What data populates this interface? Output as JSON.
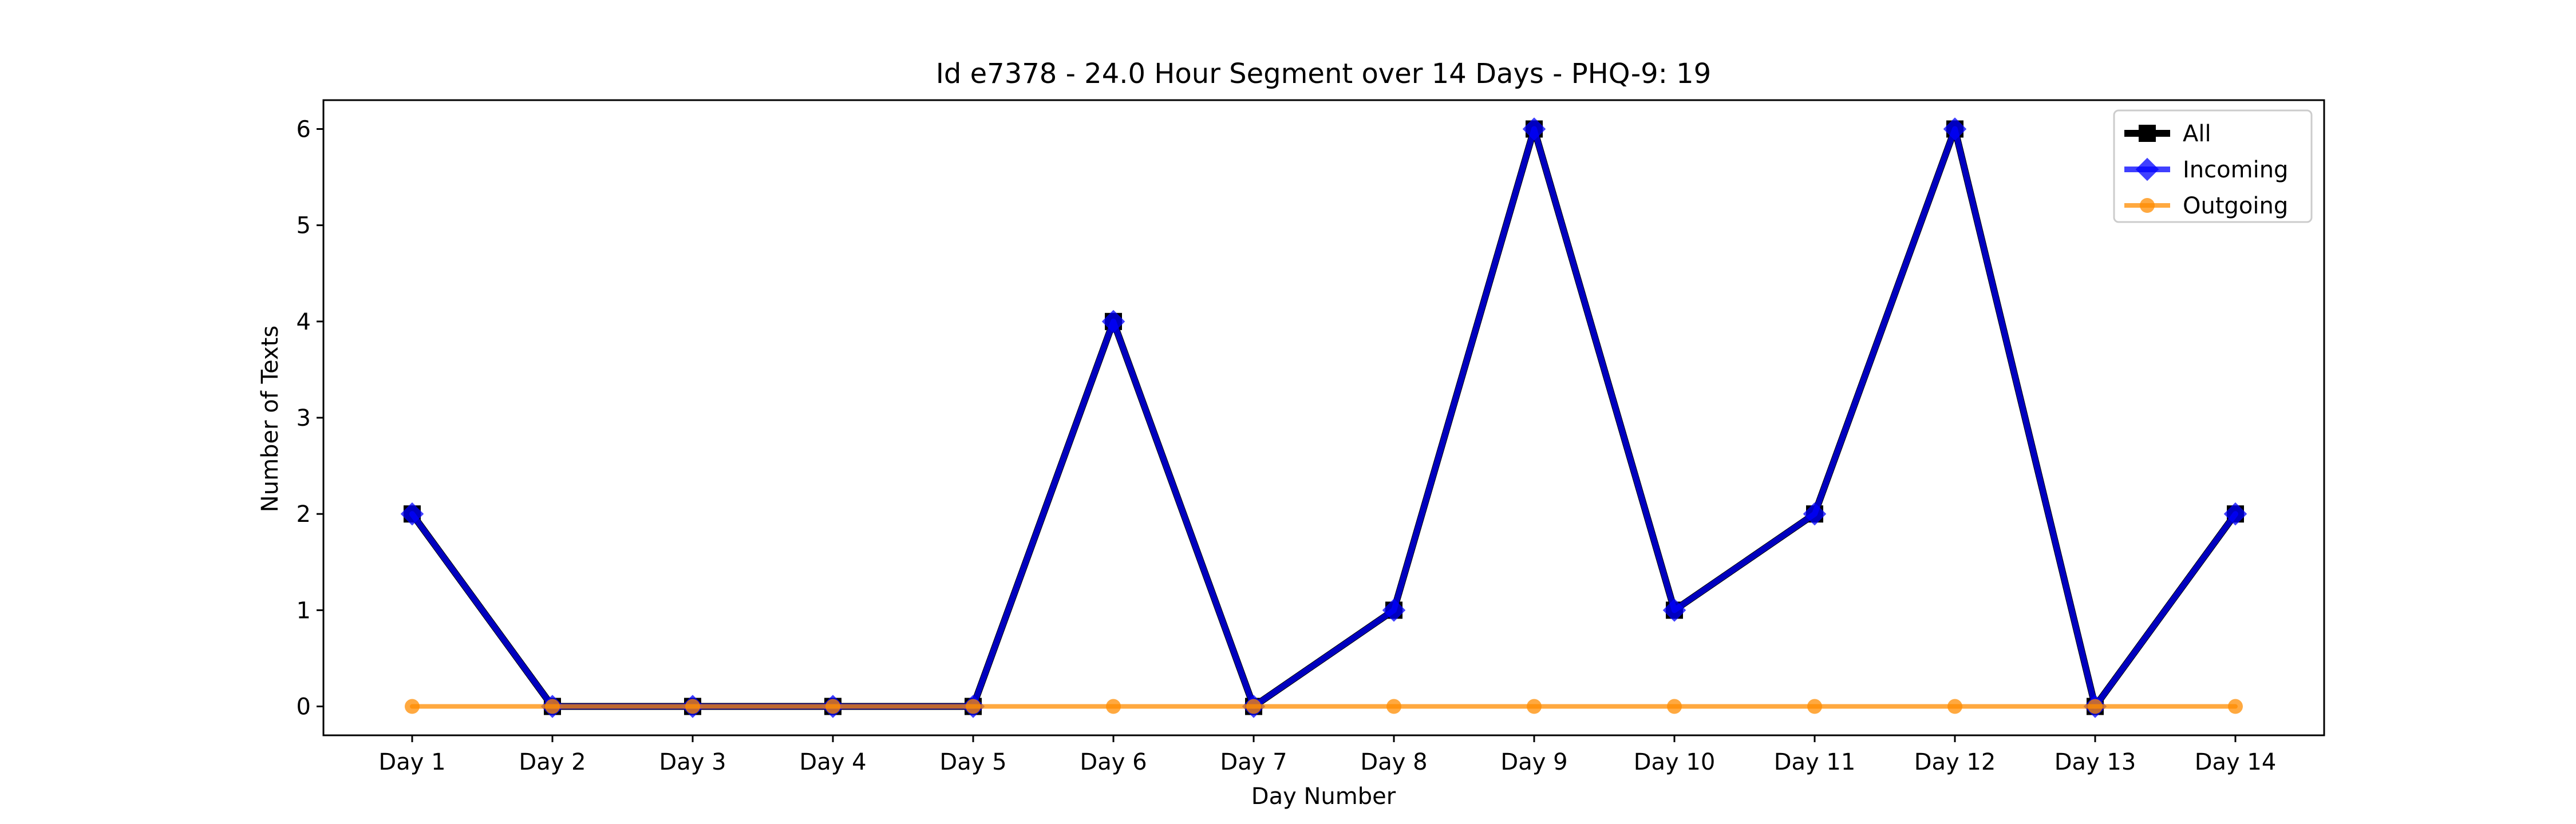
{
  "chart_data": {
    "type": "line",
    "title": "Id e7378 - 24.0 Hour Segment over 14 Days - PHQ-9: 19",
    "xlabel": "Day Number",
    "ylabel": "Number of Texts",
    "categories": [
      "Day 1",
      "Day 2",
      "Day 3",
      "Day 4",
      "Day 5",
      "Day 6",
      "Day 7",
      "Day 8",
      "Day 9",
      "Day 10",
      "Day 11",
      "Day 12",
      "Day 13",
      "Day 14"
    ],
    "ylim": [
      -0.3,
      6.3
    ],
    "yticks": [
      "0",
      "1",
      "2",
      "3",
      "4",
      "5",
      "6"
    ],
    "grid": false,
    "legend_position": "top-right",
    "series": [
      {
        "name": "All",
        "values": [
          2,
          0,
          0,
          0,
          0,
          4,
          0,
          1,
          6,
          1,
          2,
          6,
          0,
          2
        ],
        "color": "#000000",
        "marker": "square"
      },
      {
        "name": "Incoming",
        "values": [
          2,
          0,
          0,
          0,
          0,
          4,
          0,
          1,
          6,
          1,
          2,
          6,
          0,
          2
        ],
        "color": "#0000ff",
        "marker": "diamond"
      },
      {
        "name": "Outgoing",
        "values": [
          0,
          0,
          0,
          0,
          0,
          0,
          0,
          0,
          0,
          0,
          0,
          0,
          0,
          0
        ],
        "color": "#ff8c00",
        "marker": "circle"
      }
    ]
  }
}
